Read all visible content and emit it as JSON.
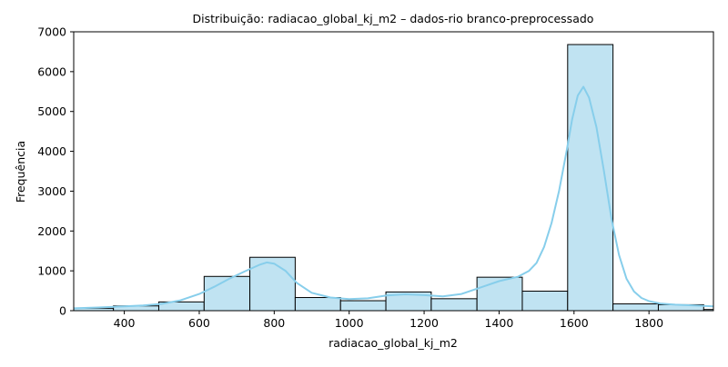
{
  "chart_data": {
    "type": "bar",
    "title": "Distribuição: radiacao_global_kj_m2 – dados-rio branco-preprocessado",
    "xlabel": "radiacao_global_kj_m2",
    "ylabel": "Frequência",
    "xlim": [
      265,
      1972
    ],
    "ylim": [
      0,
      7000
    ],
    "xticks": [
      400,
      600,
      800,
      1000,
      1200,
      1400,
      1600,
      1800
    ],
    "yticks": [
      0,
      1000,
      2000,
      3000,
      4000,
      5000,
      6000,
      7000
    ],
    "grid": false,
    "bins": [
      {
        "x0": 255,
        "x1": 371,
        "count": 60
      },
      {
        "x0": 371,
        "x1": 492,
        "count": 120
      },
      {
        "x0": 492,
        "x1": 613,
        "count": 220
      },
      {
        "x0": 613,
        "x1": 735,
        "count": 860
      },
      {
        "x0": 735,
        "x1": 856,
        "count": 1340
      },
      {
        "x0": 856,
        "x1": 977,
        "count": 330
      },
      {
        "x0": 977,
        "x1": 1098,
        "count": 250
      },
      {
        "x0": 1098,
        "x1": 1219,
        "count": 470
      },
      {
        "x0": 1219,
        "x1": 1341,
        "count": 300
      },
      {
        "x0": 1341,
        "x1": 1462,
        "count": 840
      },
      {
        "x0": 1462,
        "x1": 1583,
        "count": 490
      },
      {
        "x0": 1583,
        "x1": 1704,
        "count": 6680
      },
      {
        "x0": 1704,
        "x1": 1825,
        "count": 170
      },
      {
        "x0": 1825,
        "x1": 1946,
        "count": 150
      },
      {
        "x0": 1946,
        "x1": 2068,
        "count": 30
      }
    ],
    "kde": {
      "x": [
        265,
        330,
        400,
        450,
        500,
        550,
        600,
        640,
        680,
        720,
        760,
        780,
        800,
        830,
        860,
        900,
        950,
        1000,
        1050,
        1100,
        1150,
        1200,
        1250,
        1300,
        1350,
        1400,
        1450,
        1480,
        1500,
        1520,
        1540,
        1560,
        1580,
        1595,
        1610,
        1625,
        1640,
        1660,
        1680,
        1700,
        1720,
        1740,
        1760,
        1780,
        1800,
        1830,
        1870,
        1920,
        1972
      ],
      "y": [
        60,
        80,
        110,
        130,
        170,
        260,
        420,
        600,
        800,
        980,
        1150,
        1210,
        1180,
        1000,
        700,
        450,
        330,
        290,
        310,
        380,
        410,
        390,
        360,
        420,
        580,
        740,
        850,
        1000,
        1200,
        1600,
        2200,
        3000,
        4000,
        4800,
        5400,
        5620,
        5350,
        4600,
        3500,
        2300,
        1400,
        800,
        480,
        320,
        240,
        180,
        150,
        130,
        110
      ]
    },
    "colors": {
      "bar_fill": "#c0e3f2",
      "bar_edge": "#000000",
      "kde_line": "#87ceeb"
    }
  }
}
